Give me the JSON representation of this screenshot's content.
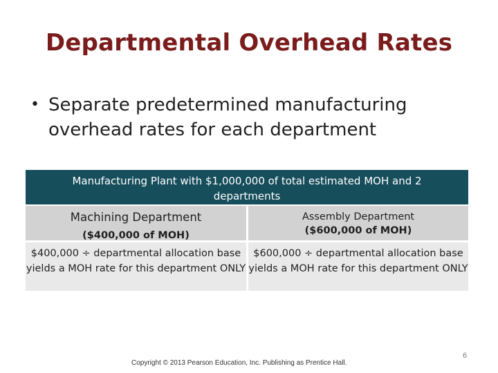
{
  "colors": {
    "title": "#7b1c1c",
    "table_header_bg": "#174e5c",
    "dept_row_bg": "#d2d2d2",
    "alloc_row_bg": "#e9e9e9"
  },
  "slide": {
    "title": "Departmental Overhead Rates",
    "bullet_glyph": "•",
    "bullet_text": "Separate predetermined manufacturing overhead rates for each department",
    "table": {
      "header": "Manufacturing Plant with  $1,000,000 of total estimated MOH and 2 departments",
      "machining": {
        "name": "Machining Department",
        "moh": "($400,000 of MOH)",
        "allocation": "$400,000 ÷ departmental allocation base yields a MOH rate for this department ONLY"
      },
      "assembly": {
        "name": "Assembly Department",
        "moh": "($600,000 of MOH)",
        "allocation": "$600,000 ÷ departmental allocation base yields a MOH rate for this department ONLY"
      }
    },
    "copyright": "Copyright © 2013 Pearson Education, Inc. Publishing as Prentice Hall.",
    "page_number": "6"
  }
}
